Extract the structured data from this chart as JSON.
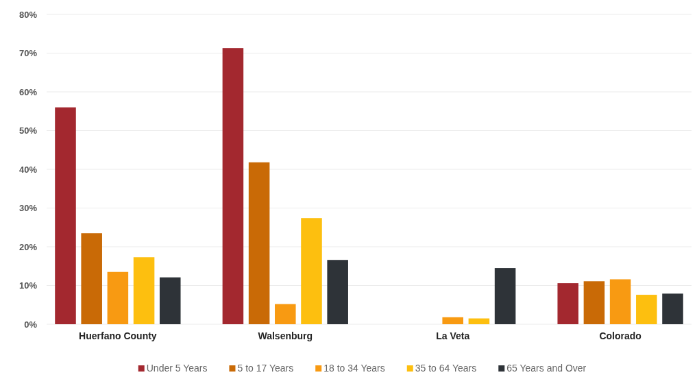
{
  "chart_data": {
    "type": "bar",
    "categories": [
      "Huerfano County",
      "Walsenburg",
      "La Veta",
      "Colorado"
    ],
    "series": [
      {
        "name": "Under 5 Years",
        "color": "#a3282f",
        "values": [
          56.0,
          71.3,
          0,
          10.6
        ]
      },
      {
        "name": "5 to 17 Years",
        "color": "#c96a06",
        "values": [
          23.5,
          41.8,
          0,
          11.1
        ]
      },
      {
        "name": "18 to 34 Years",
        "color": "#f89a12",
        "values": [
          13.5,
          5.2,
          1.8,
          11.6
        ]
      },
      {
        "name": "35 to 64 Years",
        "color": "#fdbf0f",
        "values": [
          17.3,
          27.4,
          1.5,
          7.6
        ]
      },
      {
        "name": "65 Years and Over",
        "color": "#2e3338",
        "values": [
          12.1,
          16.6,
          14.5,
          7.9
        ]
      }
    ],
    "ylim": [
      0,
      80
    ],
    "yticks": [
      {
        "value": 0,
        "label": "0%"
      },
      {
        "value": 10,
        "label": "10%"
      },
      {
        "value": 20,
        "label": "20%"
      },
      {
        "value": 30,
        "label": "30%"
      },
      {
        "value": 40,
        "label": "40%"
      },
      {
        "value": 50,
        "label": "50%"
      },
      {
        "value": 60,
        "label": "60%"
      },
      {
        "value": 70,
        "label": "70%"
      },
      {
        "value": 80,
        "label": "80%"
      }
    ],
    "grid": "y",
    "legend": "bottom"
  }
}
